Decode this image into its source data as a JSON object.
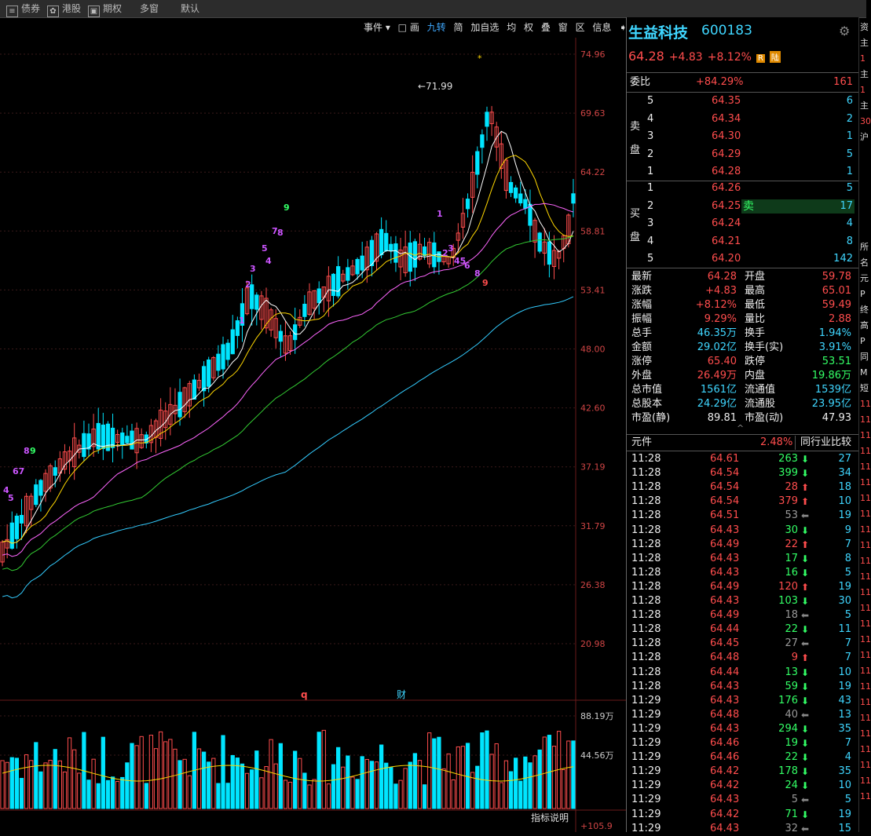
{
  "topbar": {
    "tabs": [
      "债券",
      "港股",
      "期权",
      "多窗",
      "默认"
    ]
  },
  "toolbar": {
    "items": [
      "事件 ▾",
      "□ 画",
      "九转",
      "简",
      "加自选",
      "均",
      "权",
      "叠",
      "窗",
      "区",
      "信息",
      "➧ ▾"
    ]
  },
  "chart": {
    "price_ticks": [
      "74.96",
      "69.63",
      "64.22",
      "58.81",
      "53.41",
      "48.00",
      "42.60",
      "37.19",
      "31.79",
      "26.38",
      "20.98"
    ],
    "vol_ticks": [
      "88.19万",
      "44.56万"
    ],
    "ind_tick": "+105.9",
    "high_label": "71.99",
    "marker_q": "q",
    "marker_cai": "财",
    "help": "指标说明",
    "star": "*",
    "nine_labels": [
      "9",
      "7",
      "8",
      "5",
      "4",
      "3",
      "2",
      "1",
      "6",
      "8",
      "9",
      "67",
      "4",
      "5",
      "1",
      "2",
      "3",
      "45",
      "6",
      "8",
      "9"
    ]
  },
  "quote": {
    "name": "生益科技",
    "code": "600183",
    "price": "64.28",
    "change": "+4.83",
    "pct": "+8.12%",
    "badge_r": "R",
    "badge_lu": "陆",
    "weibi_label": "委比",
    "weibi_pct": "+84.29%",
    "weibi_val": "161",
    "sell_label_1": "卖",
    "sell_label_2": "盘",
    "buy_label_1": "买",
    "buy_label_2": "盘",
    "sells": [
      {
        "lvl": "5",
        "price": "64.35",
        "vol": "6"
      },
      {
        "lvl": "4",
        "price": "64.34",
        "vol": "2"
      },
      {
        "lvl": "3",
        "price": "64.30",
        "vol": "1"
      },
      {
        "lvl": "2",
        "price": "64.29",
        "vol": "5"
      },
      {
        "lvl": "1",
        "price": "64.28",
        "vol": "1"
      }
    ],
    "buys": [
      {
        "lvl": "1",
        "price": "64.26",
        "vol": "5"
      },
      {
        "lvl": "2",
        "price": "64.25",
        "vol": "17",
        "tag": "卖"
      },
      {
        "lvl": "3",
        "price": "64.24",
        "vol": "4"
      },
      {
        "lvl": "4",
        "price": "64.21",
        "vol": "8"
      },
      {
        "lvl": "5",
        "price": "64.20",
        "vol": "142"
      }
    ],
    "stats": [
      [
        "最新",
        "64.28",
        "red",
        "开盘",
        "59.78",
        "red"
      ],
      [
        "涨跌",
        "+4.83",
        "red",
        "最高",
        "65.01",
        "red"
      ],
      [
        "涨幅",
        "+8.12%",
        "red",
        "最低",
        "59.49",
        "red"
      ],
      [
        "振幅",
        "9.29%",
        "red",
        "量比",
        "2.88",
        "red"
      ],
      [
        "总手",
        "46.35万",
        "cyan",
        "换手",
        "1.94%",
        "cyan"
      ],
      [
        "金额",
        "29.02亿",
        "cyan",
        "换手(实)",
        "3.91%",
        "cyan"
      ],
      [
        "涨停",
        "65.40",
        "red",
        "跌停",
        "53.51",
        "green"
      ],
      [
        "外盘",
        "26.49万",
        "red",
        "内盘",
        "19.86万",
        "green"
      ],
      [
        "总市值",
        "1561亿",
        "cyan",
        "流通值",
        "1539亿",
        "cyan"
      ],
      [
        "总股本",
        "24.29亿",
        "cyan",
        "流通股",
        "23.95亿",
        "cyan"
      ],
      [
        "市盈(静)",
        "89.81",
        "white",
        "市盈(动)",
        "47.93",
        "white"
      ]
    ],
    "sector": "元件",
    "sector_pct": "2.48%",
    "compare_btn": "同行业比较"
  },
  "ticks": [
    [
      "11:28",
      "64.61",
      "263",
      "down",
      "27"
    ],
    [
      "11:28",
      "64.54",
      "399",
      "down",
      "34"
    ],
    [
      "11:28",
      "64.54",
      "28",
      "up",
      "18"
    ],
    [
      "11:28",
      "64.54",
      "379",
      "up",
      "10"
    ],
    [
      "11:28",
      "64.51",
      "53",
      "flat",
      "19"
    ],
    [
      "11:28",
      "64.43",
      "30",
      "down",
      "9"
    ],
    [
      "11:28",
      "64.49",
      "22",
      "up",
      "7"
    ],
    [
      "11:28",
      "64.43",
      "17",
      "down",
      "8"
    ],
    [
      "11:28",
      "64.43",
      "16",
      "down",
      "5"
    ],
    [
      "11:28",
      "64.49",
      "120",
      "up",
      "19"
    ],
    [
      "11:28",
      "64.43",
      "103",
      "down",
      "30"
    ],
    [
      "11:28",
      "64.49",
      "18",
      "flat",
      "5"
    ],
    [
      "11:28",
      "64.44",
      "22",
      "down",
      "11"
    ],
    [
      "11:28",
      "64.45",
      "27",
      "flat",
      "7"
    ],
    [
      "11:28",
      "64.48",
      "9",
      "up",
      "7"
    ],
    [
      "11:28",
      "64.44",
      "13",
      "down",
      "10"
    ],
    [
      "11:28",
      "64.43",
      "59",
      "down",
      "19"
    ],
    [
      "11:29",
      "64.43",
      "176",
      "down",
      "43"
    ],
    [
      "11:29",
      "64.48",
      "40",
      "flat",
      "13"
    ],
    [
      "11:29",
      "64.43",
      "294",
      "down",
      "35"
    ],
    [
      "11:29",
      "64.46",
      "19",
      "down",
      "7"
    ],
    [
      "11:29",
      "64.46",
      "22",
      "down",
      "4"
    ],
    [
      "11:29",
      "64.42",
      "178",
      "down",
      "35"
    ],
    [
      "11:29",
      "64.42",
      "24",
      "down",
      "10"
    ],
    [
      "11:29",
      "64.43",
      "5",
      "flat",
      "5"
    ],
    [
      "11:29",
      "64.42",
      "71",
      "down",
      "19"
    ],
    [
      "11:29",
      "64.43",
      "32",
      "flat",
      "15"
    ]
  ],
  "far_chars": [
    "资",
    "主",
    "1",
    "主",
    "1",
    "主",
    "30",
    "沪",
    "",
    "",
    "",
    "",
    "",
    "",
    "所",
    "名",
    "元",
    "P",
    "终",
    "高",
    "P",
    "同",
    "M",
    "短",
    "11",
    "11",
    "11",
    "11",
    "11",
    "11",
    "11",
    "11",
    "11",
    "11",
    "11",
    "11",
    "11",
    "11",
    "11",
    "11",
    "11",
    "11",
    "11",
    "11",
    "11",
    "11",
    "11",
    "11",
    "11",
    "11"
  ],
  "colors": {
    "up": "#ff4d4d",
    "down": "#00e5ff",
    "ma5": "#ffffff",
    "ma10": "#ffd700",
    "ma20": "#ff66ff",
    "ma30": "#33cc33",
    "ma60": "#33ccff"
  }
}
